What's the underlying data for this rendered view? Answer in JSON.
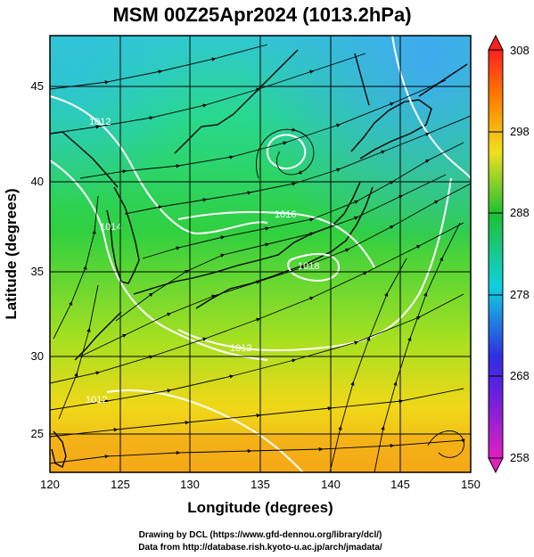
{
  "title": "MSM 00Z25Apr2024 (1013.2hPa)",
  "xaxis": {
    "label": "Longitude (degrees)",
    "range": [
      120,
      150
    ],
    "ticks": [
      "120",
      "125",
      "130",
      "135",
      "140",
      "145",
      "150"
    ]
  },
  "yaxis": {
    "label": "Latitude  (degrees)",
    "range": [
      22.4,
      47.6
    ],
    "ticks": [
      "25",
      "30",
      "35",
      "40",
      "45"
    ]
  },
  "colorbar": {
    "range": [
      258,
      308
    ],
    "ticks": [
      "258",
      "268",
      "278",
      "288",
      "298",
      "308"
    ],
    "colors": [
      "#e020c0",
      "#3030e0",
      "#10d0e0",
      "#20c030",
      "#f0e020",
      "#ff8000",
      "#ff2020"
    ]
  },
  "contour_labels": [
    "1012",
    "1014",
    "1016",
    "1018",
    "1012",
    "1012"
  ],
  "credits": {
    "line1": "Drawing by DCL (https://www.gfd-dennou.org/library/dcl/)",
    "line2": "Data from http://database.rish.kyoto-u.ac.jp/arch/jmadata/"
  },
  "chart_data": {
    "type": "heatmap",
    "field": "surface temperature with sea-level pressure contours and streamlines",
    "x_range": [
      120,
      150
    ],
    "y_range": [
      22.4,
      47.6
    ],
    "value_range": [
      258,
      308
    ],
    "grid": true,
    "legend": "right colorbar"
  }
}
